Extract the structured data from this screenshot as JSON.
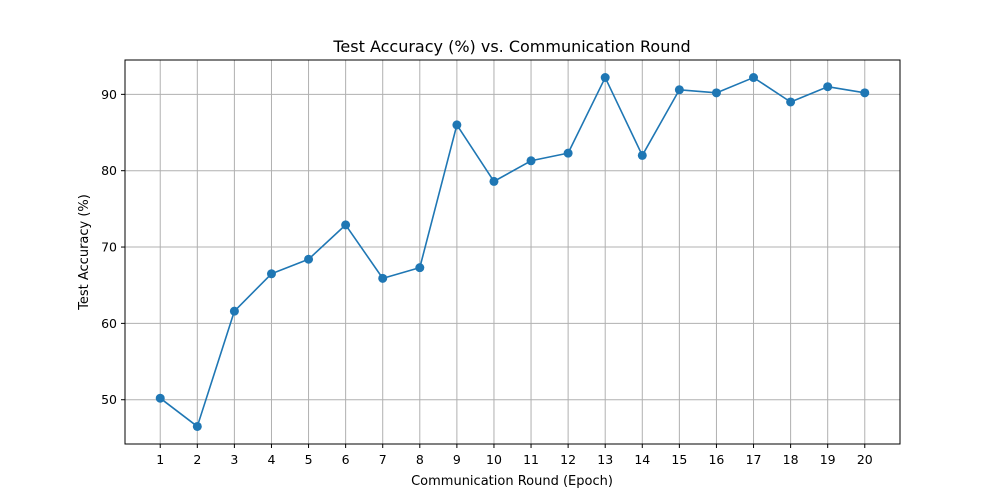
{
  "chart_data": {
    "type": "line",
    "title": "Test Accuracy (%) vs. Communication Round",
    "xlabel": "Communication Round (Epoch)",
    "ylabel": "Test Accuracy (%)",
    "x": [
      1,
      2,
      3,
      4,
      5,
      6,
      7,
      8,
      9,
      10,
      11,
      12,
      13,
      14,
      15,
      16,
      17,
      18,
      19,
      20
    ],
    "series": [
      {
        "name": "Test Accuracy",
        "color": "#1f77b4",
        "marker": "circle",
        "values": [
          50.2,
          46.5,
          61.6,
          66.5,
          68.4,
          72.9,
          65.9,
          67.3,
          86.0,
          78.6,
          81.3,
          82.3,
          92.2,
          82.0,
          90.6,
          90.2,
          92.2,
          89.0,
          91.0,
          90.2
        ]
      }
    ],
    "xlim": [
      0.05,
      20.95
    ],
    "ylim": [
      44.2,
      94.5
    ],
    "xticks": [
      1,
      2,
      3,
      4,
      5,
      6,
      7,
      8,
      9,
      10,
      11,
      12,
      13,
      14,
      15,
      16,
      17,
      18,
      19,
      20
    ],
    "yticks": [
      50,
      60,
      70,
      80,
      90
    ],
    "grid": true
  }
}
